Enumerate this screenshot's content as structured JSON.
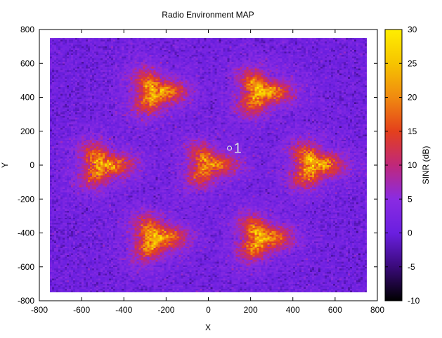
{
  "chart_data": {
    "type": "heatmap",
    "title": "Radio Environment MAP",
    "xlabel": "X",
    "ylabel": "Y",
    "xlim": [
      -800,
      800
    ],
    "ylim": [
      -800,
      800
    ],
    "x_ticks": [
      "-800",
      "-600",
      "-400",
      "-200",
      "0",
      "200",
      "400",
      "600",
      "800"
    ],
    "x_tick_values": [
      -800,
      -600,
      -400,
      -200,
      0,
      200,
      400,
      600,
      800
    ],
    "y_ticks": [
      "-800",
      "-600",
      "-400",
      "-200",
      "0",
      "200",
      "400",
      "600",
      "800"
    ],
    "y_tick_values": [
      -800,
      -600,
      -400,
      -200,
      0,
      200,
      400,
      600,
      800
    ],
    "data_extent": {
      "x": [
        -750,
        750
      ],
      "y": [
        -750,
        750
      ]
    },
    "colorbar": {
      "label": "SINR (dB)",
      "range": [
        -10,
        30
      ],
      "ticks": [
        "30",
        "25",
        "20",
        "15",
        "10",
        "5",
        "0",
        "-5",
        "-10"
      ],
      "tick_values": [
        30,
        25,
        20,
        15,
        10,
        5,
        0,
        -5,
        -10
      ],
      "colormap": [
        "#000000",
        "#3a0a7a",
        "#6a1fe0",
        "#8a2be2",
        "#c0287a",
        "#e4401c",
        "#f08a10",
        "#f6c400",
        "#ffee00"
      ]
    },
    "background_sinr_db": 1,
    "hotspots": [
      {
        "x": 0,
        "y": 0,
        "peak_sinr_db": 15
      },
      {
        "x": -250,
        "y": 430,
        "peak_sinr_db": 18
      },
      {
        "x": 250,
        "y": 430,
        "peak_sinr_db": 18
      },
      {
        "x": -500,
        "y": 0,
        "peak_sinr_db": 17
      },
      {
        "x": 500,
        "y": 0,
        "peak_sinr_db": 18
      },
      {
        "x": -250,
        "y": -430,
        "peak_sinr_db": 18
      },
      {
        "x": 250,
        "y": -430,
        "peak_sinr_db": 18
      }
    ],
    "annotations": [
      {
        "label": "1",
        "x": 120,
        "y": 110
      }
    ],
    "marker": {
      "x": 100,
      "y": 100,
      "shape": "circle"
    },
    "grid": false
  }
}
